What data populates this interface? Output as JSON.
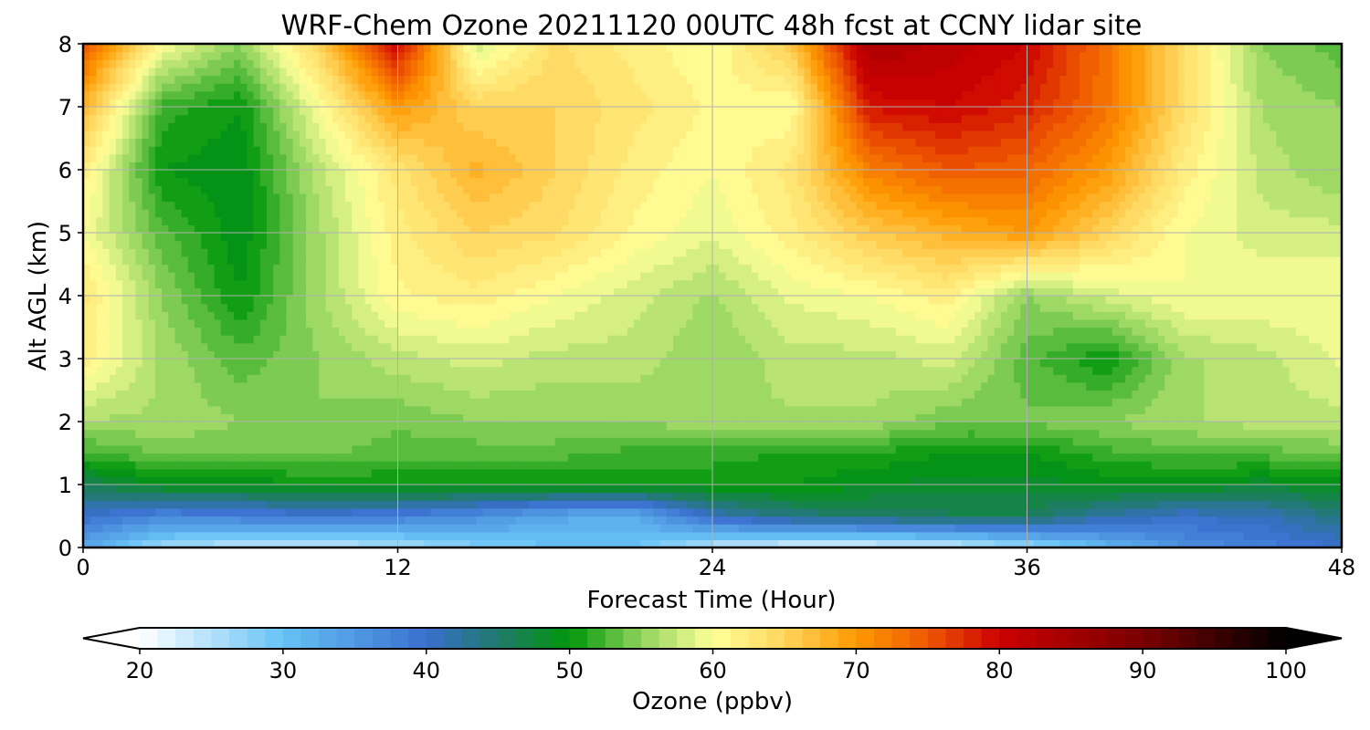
{
  "chart_data": {
    "type": "heatmap",
    "title": "WRF-Chem Ozone  20211120 00UTC 48h fcst at CCNY lidar site",
    "xlabel": "Forecast Time (Hour)",
    "ylabel": "Alt AGL (km)",
    "xlim": [
      0,
      48
    ],
    "ylim": [
      0,
      8
    ],
    "x_ticks": [
      "0",
      "12",
      "24",
      "36",
      "48"
    ],
    "y_ticks": [
      "0",
      "1",
      "2",
      "3",
      "4",
      "5",
      "6",
      "7",
      "8"
    ],
    "grid": true,
    "x": [
      0,
      3,
      6,
      9,
      12,
      15,
      18,
      21,
      24,
      27,
      30,
      33,
      36,
      39,
      42,
      45,
      48
    ],
    "y": [
      0,
      0.5,
      1,
      1.5,
      2,
      3,
      4,
      5,
      6,
      7,
      8
    ],
    "z": [
      [
        33,
        26,
        24,
        24,
        25,
        28,
        30,
        30,
        24,
        22,
        22,
        23,
        26,
        31,
        36,
        38,
        40
      ],
      [
        40,
        37,
        38,
        39,
        38,
        36,
        33,
        32,
        41,
        44,
        45,
        46,
        46,
        42,
        40,
        41,
        44
      ],
      [
        46,
        49,
        49,
        50,
        50,
        50,
        50,
        50,
        50,
        50,
        49,
        48,
        48,
        49,
        49,
        48,
        49
      ],
      [
        52,
        54,
        54,
        54,
        53,
        53,
        53,
        52,
        52,
        51,
        51,
        50,
        50,
        52,
        53,
        53,
        54
      ],
      [
        56,
        56,
        55,
        55,
        54,
        55,
        55,
        55,
        56,
        56,
        56,
        54,
        54,
        55,
        56,
        57,
        57
      ],
      [
        62,
        56,
        53,
        55,
        57,
        58,
        57,
        57,
        55,
        57,
        57,
        58,
        53,
        50,
        56,
        57,
        59
      ],
      [
        63,
        55,
        50,
        56,
        61,
        62,
        60,
        58,
        56,
        59,
        60,
        62,
        55,
        58,
        60,
        60,
        60
      ],
      [
        60,
        53,
        49,
        56,
        62,
        65,
        64,
        61,
        59,
        62,
        66,
        68,
        70,
        65,
        60,
        58,
        58
      ],
      [
        62,
        50,
        49,
        57,
        63,
        68,
        65,
        62,
        60,
        63,
        72,
        75,
        74,
        70,
        62,
        57,
        55
      ],
      [
        68,
        52,
        50,
        60,
        70,
        65,
        65,
        63,
        61,
        60,
        79,
        80,
        78,
        73,
        64,
        56,
        55
      ],
      [
        75,
        60,
        55,
        65,
        80,
        58,
        64,
        62,
        60,
        66,
        84,
        82,
        80,
        73,
        64,
        55,
        53
      ]
    ],
    "colorbar": {
      "label": "Ozone  (ppbv)",
      "range": [
        20,
        100
      ],
      "ticks": [
        "20",
        "30",
        "40",
        "50",
        "60",
        "70",
        "80",
        "90",
        "100"
      ],
      "extend": "both",
      "stops": [
        {
          "v": 20,
          "c": "#ffffff"
        },
        {
          "v": 30,
          "c": "#66c2f5"
        },
        {
          "v": 40,
          "c": "#3a6fcf"
        },
        {
          "v": 45,
          "c": "#207a6a"
        },
        {
          "v": 50,
          "c": "#00960a"
        },
        {
          "v": 55,
          "c": "#8fd35c"
        },
        {
          "v": 60,
          "c": "#ffff99"
        },
        {
          "v": 65,
          "c": "#ffd55c"
        },
        {
          "v": 70,
          "c": "#ff9a00"
        },
        {
          "v": 75,
          "c": "#ee5800"
        },
        {
          "v": 80,
          "c": "#cc0000"
        },
        {
          "v": 90,
          "c": "#7a0000"
        },
        {
          "v": 100,
          "c": "#000000"
        }
      ]
    }
  }
}
